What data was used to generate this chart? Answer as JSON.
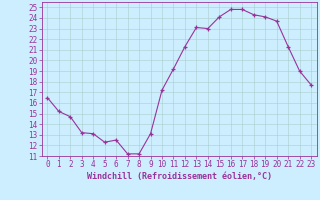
{
  "x": [
    0,
    1,
    2,
    3,
    4,
    5,
    6,
    7,
    8,
    9,
    10,
    11,
    12,
    13,
    14,
    15,
    16,
    17,
    18,
    19,
    20,
    21,
    22,
    23
  ],
  "y": [
    16.5,
    15.2,
    14.7,
    13.2,
    13.1,
    12.3,
    12.5,
    11.2,
    11.2,
    13.1,
    17.2,
    19.2,
    21.3,
    23.1,
    23.0,
    24.1,
    24.8,
    24.8,
    24.3,
    24.1,
    23.7,
    21.3,
    19.0,
    17.7
  ],
  "line_color": "#993399",
  "marker_color": "#993399",
  "bg_color": "#cceeff",
  "grid_color": "#aacccc",
  "xlabel": "Windchill (Refroidissement éolien,°C)",
  "ylim": [
    11,
    25.5
  ],
  "xlim": [
    -0.5,
    23.5
  ],
  "yticks": [
    11,
    12,
    13,
    14,
    15,
    16,
    17,
    18,
    19,
    20,
    21,
    22,
    23,
    24,
    25
  ],
  "xticks": [
    0,
    1,
    2,
    3,
    4,
    5,
    6,
    7,
    8,
    9,
    10,
    11,
    12,
    13,
    14,
    15,
    16,
    17,
    18,
    19,
    20,
    21,
    22,
    23
  ],
  "tick_color": "#993399",
  "axis_color": "#993399",
  "label_fontsize": 6.0,
  "tick_fontsize": 5.5
}
